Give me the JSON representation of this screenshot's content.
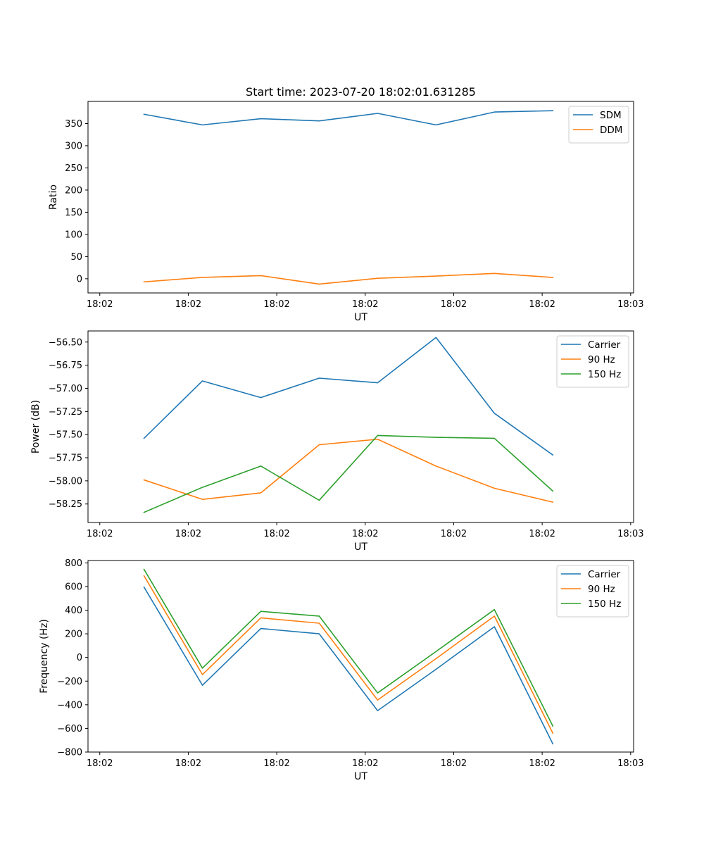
{
  "figure": {
    "title": "Start time: 2023-07-20 18:02:01.631285"
  },
  "colors": {
    "c0": "#1f77b4",
    "c1": "#ff7f0e",
    "c2": "#2ca02c"
  },
  "chart_data": [
    {
      "type": "line",
      "id": "ratio",
      "title": "Start time: 2023-07-20 18:02:01.631285",
      "xlabel": "UT",
      "ylabel": "Ratio",
      "x_tick_labels": [
        "18:02",
        "18:02",
        "18:02",
        "18:02",
        "18:02",
        "18:02",
        "18:03"
      ],
      "x_tick_values": [
        0,
        1.5,
        3,
        4.5,
        6,
        7.5,
        9
      ],
      "xlim": [
        -0.2,
        9.05
      ],
      "ylim": [
        -32,
        400
      ],
      "y_ticks": [
        0,
        50,
        100,
        150,
        200,
        250,
        300,
        350
      ],
      "x": [
        0.75,
        1.74,
        2.73,
        3.72,
        4.71,
        5.7,
        6.69,
        7.68
      ],
      "series": [
        {
          "name": "SDM",
          "color_key": "c0",
          "values": [
            371,
            347,
            361,
            356,
            373,
            347,
            376,
            379
          ]
        },
        {
          "name": "DDM",
          "color_key": "c1",
          "values": [
            -7,
            3,
            7,
            -12,
            1,
            6,
            12,
            3
          ]
        }
      ],
      "legend": "top-right"
    },
    {
      "type": "line",
      "id": "power",
      "title": "",
      "xlabel": "UT",
      "ylabel": "Power (dB)",
      "x_tick_labels": [
        "18:02",
        "18:02",
        "18:02",
        "18:02",
        "18:02",
        "18:02",
        "18:03"
      ],
      "x_tick_values": [
        0,
        1.5,
        3,
        4.5,
        6,
        7.5,
        9
      ],
      "xlim": [
        -0.2,
        9.05
      ],
      "ylim": [
        -58.45,
        -56.38
      ],
      "y_ticks": [
        -58.25,
        -58.0,
        -57.75,
        -57.5,
        -57.25,
        -57.0,
        -56.75,
        -56.5
      ],
      "y_tick_labels": [
        "−58.25",
        "−58.00",
        "−57.75",
        "−57.50",
        "−57.25",
        "−57.00",
        "−56.75",
        "−56.50"
      ],
      "x": [
        0.75,
        1.74,
        2.73,
        3.72,
        4.71,
        5.7,
        6.69,
        7.68
      ],
      "series": [
        {
          "name": "Carrier",
          "color_key": "c0",
          "values": [
            -57.54,
            -56.92,
            -57.1,
            -56.89,
            -56.94,
            -56.45,
            -57.27,
            -57.72
          ]
        },
        {
          "name": "90 Hz",
          "color_key": "c1",
          "values": [
            -57.99,
            -58.2,
            -58.13,
            -57.61,
            -57.55,
            -57.84,
            -58.08,
            -58.23
          ]
        },
        {
          "name": "150 Hz",
          "color_key": "c2",
          "values": [
            -58.34,
            -58.07,
            -57.84,
            -58.21,
            -57.51,
            -57.53,
            -57.54,
            -58.11
          ]
        }
      ],
      "legend": "top-right"
    },
    {
      "type": "line",
      "id": "frequency",
      "title": "",
      "xlabel": "UT",
      "ylabel": "Frequency (Hz)",
      "x_tick_labels": [
        "18:02",
        "18:02",
        "18:02",
        "18:02",
        "18:02",
        "18:02",
        "18:03"
      ],
      "x_tick_values": [
        0,
        1.5,
        3,
        4.5,
        6,
        7.5,
        9
      ],
      "xlim": [
        -0.2,
        9.05
      ],
      "ylim": [
        -800,
        820
      ],
      "y_ticks": [
        -800,
        -600,
        -400,
        -200,
        0,
        200,
        400,
        600,
        800
      ],
      "y_tick_labels": [
        "−800",
        "−600",
        "−400",
        "−200",
        "0",
        "200",
        "400",
        "600",
        "800"
      ],
      "x": [
        0.75,
        1.74,
        2.73,
        3.72,
        4.71,
        5.7,
        6.69,
        7.68
      ],
      "series": [
        {
          "name": "Carrier",
          "color_key": "c0",
          "values": [
            595,
            -235,
            245,
            200,
            -450,
            -100,
            260,
            -730
          ]
        },
        {
          "name": "90 Hz",
          "color_key": "c1",
          "values": [
            690,
            -145,
            335,
            290,
            -360,
            -10,
            350,
            -640
          ]
        },
        {
          "name": "150 Hz",
          "color_key": "c2",
          "values": [
            745,
            -90,
            390,
            350,
            -300,
            50,
            405,
            -580
          ]
        }
      ],
      "legend": "top-right"
    }
  ]
}
